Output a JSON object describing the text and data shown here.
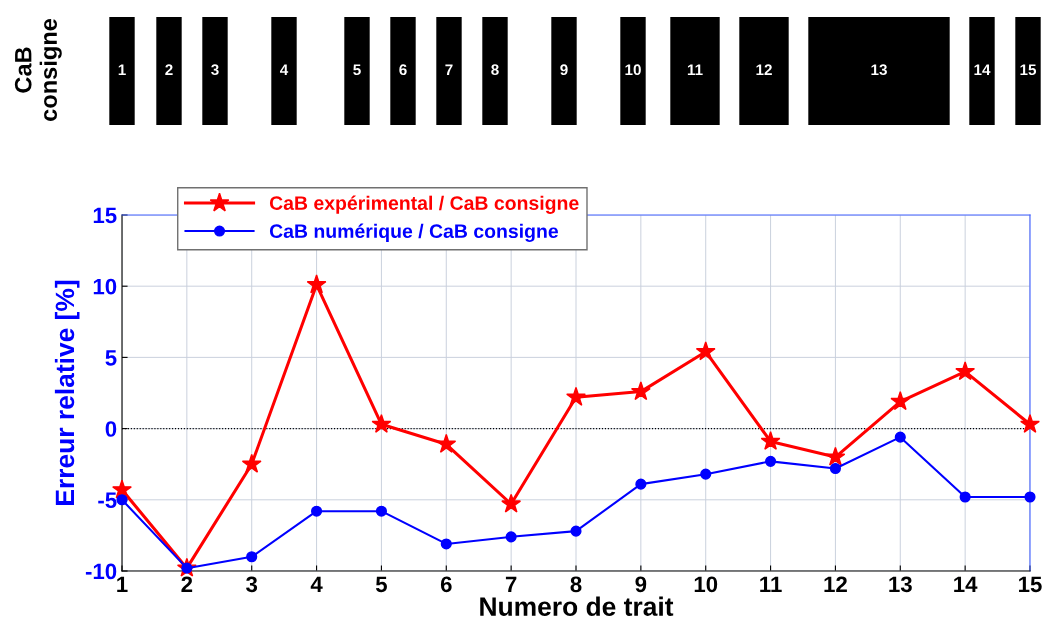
{
  "chart_data": [
    {
      "type": "other",
      "ylabel": "CaB consigne",
      "categories": [
        "1",
        "2",
        "3",
        "4",
        "5",
        "6",
        "7",
        "8",
        "9",
        "10",
        "11",
        "12",
        "13",
        "14",
        "15"
      ]
    },
    {
      "type": "line",
      "xlabel": "Numero de trait",
      "ylabel": "Erreur relative [%]",
      "x": [
        1,
        2,
        3,
        4,
        5,
        6,
        7,
        8,
        9,
        10,
        11,
        12,
        13,
        14,
        15
      ],
      "series": [
        {
          "name": "CaB expérimental / CaB consigne",
          "color": "#ff0000",
          "marker": "star",
          "values": [
            -4.3,
            -9.8,
            -2.5,
            10.1,
            0.3,
            -1.1,
            -5.3,
            2.2,
            2.6,
            5.4,
            -0.9,
            -2.0,
            1.9,
            4.0,
            0.3
          ]
        },
        {
          "name": "CaB numérique / CaB consigne",
          "color": "#0000ff",
          "marker": "circle",
          "values": [
            -5.0,
            -9.8,
            -9.0,
            -5.8,
            -5.8,
            -8.1,
            -7.6,
            -7.2,
            -3.9,
            -3.2,
            -2.3,
            -2.8,
            -0.6,
            -4.8,
            -4.8
          ]
        }
      ],
      "xlim": [
        1,
        15
      ],
      "xticks": [
        1,
        2,
        3,
        4,
        5,
        6,
        7,
        8,
        9,
        10,
        11,
        12,
        13,
        14,
        15
      ],
      "ylim": [
        -10,
        15
      ],
      "yticks": [
        -10,
        -5,
        0,
        5,
        10,
        15
      ],
      "ref_lines": [
        {
          "axis": "y",
          "value": 0,
          "color": "#000000",
          "line_style": "dotted"
        }
      ],
      "grid": true,
      "legend": "top left"
    }
  ]
}
